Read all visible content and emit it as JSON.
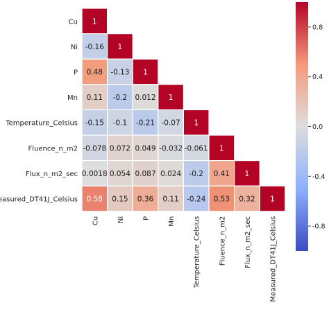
{
  "chart_data": {
    "type": "heatmap",
    "variables": [
      "Cu",
      "Ni",
      "P",
      "Mn",
      "Temperature_Celsius",
      "Fluence_n_m2",
      "Flux_n_m2_sec",
      "Measured_DT41J_Celsius"
    ],
    "matrix": [
      [
        "1"
      ],
      [
        "-0.16",
        "1"
      ],
      [
        "0.48",
        "-0.13",
        "1"
      ],
      [
        "0.11",
        "-0.2",
        "0.012",
        "1"
      ],
      [
        "-0.15",
        "-0.1",
        "-0.21",
        "-0.07",
        "1"
      ],
      [
        "-0.078",
        "0.072",
        "0.049",
        "-0.032",
        "-0.061",
        "1"
      ],
      [
        "0.0018",
        "0.054",
        "0.087",
        "0.024",
        "-0.2",
        "0.41",
        "1"
      ],
      [
        "0.58",
        "0.15",
        "0.36",
        "0.11",
        "-0.24",
        "0.53",
        "0.32",
        "1"
      ]
    ],
    "mask": "upper-triangle",
    "colormap": "coolwarm",
    "colorbar": {
      "range": [
        -1,
        1
      ],
      "ticks": [
        "0.8",
        "0.4",
        "0.0",
        "-0.4",
        "-0.8"
      ]
    },
    "cell_separator_color": "#ffffff"
  }
}
